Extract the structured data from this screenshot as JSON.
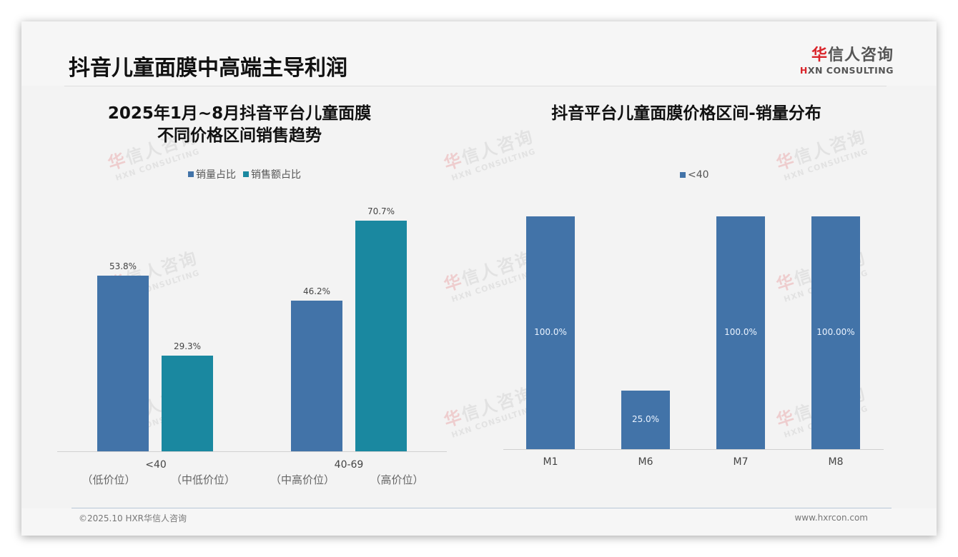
{
  "page": {
    "title": "抖音儿童面膜中高端主导利润",
    "logo": {
      "cn_accent": "华",
      "cn_rest": "信人咨询",
      "en_accent": "H",
      "en_rest": "XN CONSULTING"
    },
    "watermark": {
      "cn_accent": "华",
      "cn_rest": "信人咨询",
      "en": "HXN CONSULTING"
    },
    "footer": {
      "left": "©2025.10 HXR华信人咨询",
      "right": "www.hxrcon.com"
    }
  },
  "colors": {
    "series_volume": "#4273a8",
    "series_revenue": "#1a88a0",
    "accent_red": "#d9252b"
  },
  "left_chart": {
    "title_line1": "2025年1月~8月抖音平台儿童面膜",
    "title_line2": "不同价格区间销售趋势",
    "legend": [
      {
        "label": "销量占比",
        "color": "#4273a8"
      },
      {
        "label": "销售额占比",
        "color": "#1a88a0"
      }
    ],
    "groups": [
      {
        "category": "<40",
        "volume_label": "53.8%",
        "revenue_label": "29.3%",
        "sub_left": "（低价位）",
        "sub_right": "（中低价位）"
      },
      {
        "category": "40-69",
        "volume_label": "46.2%",
        "revenue_label": "70.7%",
        "sub_left": "（中高价位）",
        "sub_right": "（高价位）"
      }
    ]
  },
  "right_chart": {
    "title": "抖音平台儿童面膜价格区间-销量分布",
    "legend": [
      {
        "label": "<40",
        "color": "#4273a8"
      }
    ],
    "bars": [
      {
        "category": "M1",
        "label": "100.0%"
      },
      {
        "category": "M6",
        "label": "25.0%"
      },
      {
        "category": "M7",
        "label": "100.0%"
      },
      {
        "category": "M8",
        "label": "100.00%"
      }
    ]
  },
  "chart_data": [
    {
      "type": "bar",
      "title": "2025年1月~8月抖音平台儿童面膜不同价格区间销售趋势",
      "categories": [
        "<40",
        "40-69"
      ],
      "category_sublabels": [
        [
          "（低价位）",
          "（中低价位）"
        ],
        [
          "（中高价位）",
          "（高价位）"
        ]
      ],
      "series": [
        {
          "name": "销量占比",
          "values": [
            53.8,
            46.2
          ],
          "color": "#4273a8"
        },
        {
          "name": "销售额占比",
          "values": [
            29.3,
            70.7
          ],
          "color": "#1a88a0"
        }
      ],
      "xlabel": "",
      "ylabel": "",
      "ylim": [
        0,
        75
      ],
      "grid": false,
      "legend_position": "top",
      "value_format": "percent"
    },
    {
      "type": "bar",
      "title": "抖音平台儿童面膜价格区间-销量分布",
      "categories": [
        "M1",
        "M6",
        "M7",
        "M8"
      ],
      "series": [
        {
          "name": "<40",
          "values": [
            100.0,
            25.0,
            100.0,
            100.0
          ],
          "color": "#4273a8"
        }
      ],
      "data_labels": [
        "100.0%",
        "25.0%",
        "100.0%",
        "100.00%"
      ],
      "xlabel": "",
      "ylabel": "",
      "ylim": [
        0,
        100
      ],
      "grid": false,
      "legend_position": "top",
      "value_format": "percent"
    }
  ]
}
